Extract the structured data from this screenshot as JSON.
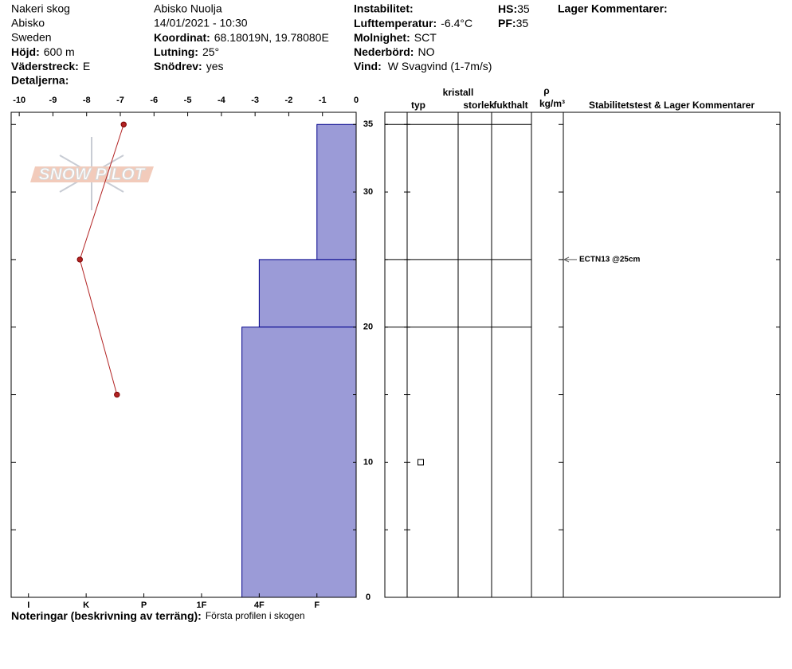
{
  "header": {
    "site": "Nakeri skog",
    "region": "Abisko",
    "country": "Sweden",
    "elevation": {
      "label": "Höjd:",
      "value": "600 m"
    },
    "aspect": {
      "label": "Väderstreck:",
      "value": "E"
    },
    "details": {
      "label": "Detaljerna:"
    },
    "location": "Abisko Nuolja",
    "datetime": "14/01/2021 - 10:30",
    "coordinates": {
      "label": "Koordinat:",
      "value": "68.18019N, 19.78080E"
    },
    "slope": {
      "label": "Lutning:",
      "value": "25°"
    },
    "wind_loading": {
      "label": "Snödrev:",
      "value": "yes"
    },
    "instability": {
      "label": "Instabilitet:"
    },
    "air_temp": {
      "label": "Lufttemperatur:",
      "value": "-6.4°C"
    },
    "sky": {
      "label": "Molnighet:",
      "value": "SCT"
    },
    "precip": {
      "label": "Nederbörd:",
      "value": "NO"
    },
    "wind": {
      "label": "Vind:",
      "value": "W Svagvind (1-7m/s)"
    },
    "hs": {
      "label": "HS:",
      "value": 35
    },
    "pf": {
      "label": "PF:",
      "value": 35
    },
    "layer_comments": {
      "label": "Lager Kommentarer:"
    }
  },
  "chart_data": {
    "type": "snow-profile",
    "logo": "SNOW PILOT",
    "ylim": [
      0,
      35.9
    ],
    "yticks": [
      0,
      10,
      20,
      30,
      35
    ],
    "yminor_ticks": [
      5,
      15,
      25
    ],
    "temperature": {
      "xlim": [
        -10.24,
        0
      ],
      "xticks": [
        -10,
        -9,
        -8,
        -7,
        -6,
        -5,
        -4,
        -3,
        -2,
        -1,
        0
      ],
      "heights": [
        35,
        25,
        15
      ],
      "values": [
        -6.9,
        -8.2,
        -7.1
      ],
      "color": "#b22222"
    },
    "hardness": {
      "xlim": [
        0.32,
        6.3
      ],
      "xticks": [
        {
          "value": 6,
          "label": "I"
        },
        {
          "value": 5,
          "label": "K"
        },
        {
          "value": 4,
          "label": "P"
        },
        {
          "value": 3,
          "label": "1F"
        },
        {
          "value": 2,
          "label": "4F"
        },
        {
          "value": 1,
          "label": "F"
        }
      ],
      "color": "#9b9bd7",
      "layers": [
        {
          "bottom": 25,
          "top": 35,
          "value": 1
        },
        {
          "bottom": 20,
          "top": 25,
          "value": 2
        },
        {
          "bottom": 0,
          "top": 20,
          "value": 2.3
        }
      ]
    },
    "table_columns": {
      "type": "typ",
      "crystal": "kristall",
      "size": "storlek",
      "moisture": "fukthalt",
      "rho": "ρ",
      "density_unit": "kg/m³",
      "comments": "Stabilitetstest & Lager Kommentarer"
    },
    "layer_boundaries": [
      35,
      25,
      20
    ],
    "grain_markers": [
      10
    ],
    "stability_tests": [
      {
        "height": 25,
        "label": "ECTN13 @25cm"
      }
    ]
  },
  "notes": {
    "label": "Noteringar (beskrivning av terräng):",
    "value": "Första profilen i skogen"
  }
}
